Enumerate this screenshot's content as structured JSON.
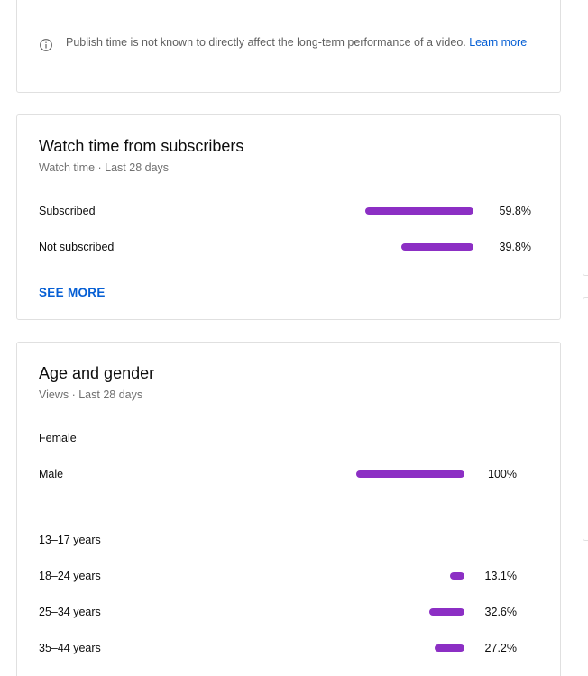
{
  "publish_note": {
    "text": "Publish time is not known to directly affect the long-term performance of a video.",
    "link": "Learn more"
  },
  "subscribers_card": {
    "title": "Watch time from subscribers",
    "subtitle": "Watch time · Last 28 days",
    "rows": [
      {
        "label": "Subscribed",
        "percent": "59.8%",
        "value": 59.8
      },
      {
        "label": "Not subscribed",
        "percent": "39.8%",
        "value": 39.8
      }
    ],
    "see_more": "SEE MORE"
  },
  "age_gender_card": {
    "title": "Age and gender",
    "subtitle": "Views · Last 28 days",
    "gender_rows": [
      {
        "label": "Female",
        "percent": "",
        "value": 0
      },
      {
        "label": "Male",
        "percent": "100%",
        "value": 100
      }
    ],
    "age_rows": [
      {
        "label": "13–17 years",
        "percent": "",
        "value": 0
      },
      {
        "label": "18–24 years",
        "percent": "13.1%",
        "value": 13.1
      },
      {
        "label": "25–34 years",
        "percent": "32.6%",
        "value": 32.6
      },
      {
        "label": "35–44 years",
        "percent": "27.2%",
        "value": 27.2
      }
    ]
  },
  "colors": {
    "bar": "#8c2fc4",
    "link": "#065fd4"
  }
}
